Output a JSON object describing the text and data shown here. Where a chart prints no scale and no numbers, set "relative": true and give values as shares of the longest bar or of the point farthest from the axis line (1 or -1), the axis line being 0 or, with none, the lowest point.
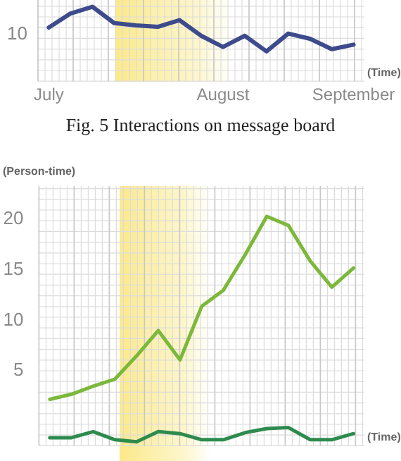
{
  "chart_data": [
    {
      "type": "line",
      "relative": true,
      "xlabel": "(Time)",
      "categories": [
        "July",
        null,
        null,
        null,
        null,
        null,
        null,
        null,
        "August",
        null,
        null,
        null,
        null,
        null,
        "September"
      ],
      "series": [
        {
          "color": "#3d4b8c",
          "values": [
            0.72,
            0.91,
            1,
            0.78,
            0.75,
            0.73,
            0.82,
            0.61,
            0.46,
            0.61,
            0.4,
            0.64,
            0.57,
            0.43,
            0.49
          ]
        }
      ],
      "annotations": [
        "10",
        "Fig. 5 Interactions on message board"
      ],
      "grid": true,
      "legend": false,
      "marker": "none",
      "line_style": "solid"
    },
    {
      "type": "line",
      "ylabel": "(Person-time)",
      "xlabel": "(Time)",
      "categories": [
        null,
        null,
        null,
        null,
        null,
        null,
        null,
        null,
        null,
        null,
        null,
        null,
        null,
        null,
        null
      ],
      "ylim": [
        -2.4,
        23.3
      ],
      "yticks": [
        5,
        10,
        15,
        20
      ],
      "series": [
        {
          "color": "#7cb83a",
          "values": [
            2.2,
            2.7,
            3.5,
            4.2,
            6.5,
            9.0,
            6.1,
            11.4,
            13.0,
            16.5,
            20.3,
            19.4,
            15.9,
            13.3,
            15.2
          ]
        },
        {
          "color": "#2e8b4e",
          "values": [
            -1.6,
            -1.6,
            -1.0,
            -1.8,
            -2.0,
            -1.0,
            -1.2,
            -1.8,
            -1.8,
            -1.1,
            -0.7,
            -0.6,
            -1.8,
            -1.8,
            -1.2
          ]
        }
      ],
      "grid": true,
      "legend": false,
      "marker": "none",
      "line_style": "solid"
    }
  ]
}
